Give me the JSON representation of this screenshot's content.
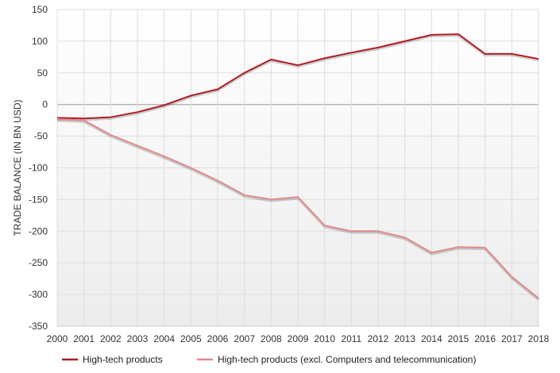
{
  "chart_data": {
    "type": "line",
    "title": "",
    "xlabel": "",
    "ylabel": "TRADE BALANCE (IN BN USD)",
    "ylim": [
      -350,
      150
    ],
    "yticks": [
      150,
      100,
      50,
      0,
      -50,
      -100,
      -150,
      -200,
      -250,
      -300,
      -350
    ],
    "x": [
      "2000",
      "2001",
      "2002",
      "2003",
      "2004",
      "2005",
      "2006",
      "2007",
      "2008",
      "2009",
      "2010",
      "2011",
      "2012",
      "2013",
      "2014",
      "2015",
      "2016",
      "2017",
      "2018"
    ],
    "grid": true,
    "legend_position": "bottom",
    "series": [
      {
        "name": "High-tech products",
        "color": "#b01c22",
        "values": [
          -21,
          -22,
          -20,
          -12,
          -1,
          14,
          24,
          50,
          71,
          62,
          73,
          82,
          90,
          100,
          110,
          111,
          80,
          80,
          72
        ]
      },
      {
        "name": "High-tech products (excl. Computers and telecommunication)",
        "color": "#e28a8a",
        "values": [
          -23,
          -25,
          -48,
          -65,
          -82,
          -100,
          -120,
          -143,
          -150,
          -146,
          -191,
          -200,
          -200,
          -210,
          -234,
          -225,
          -226,
          -272,
          -306
        ]
      }
    ]
  }
}
